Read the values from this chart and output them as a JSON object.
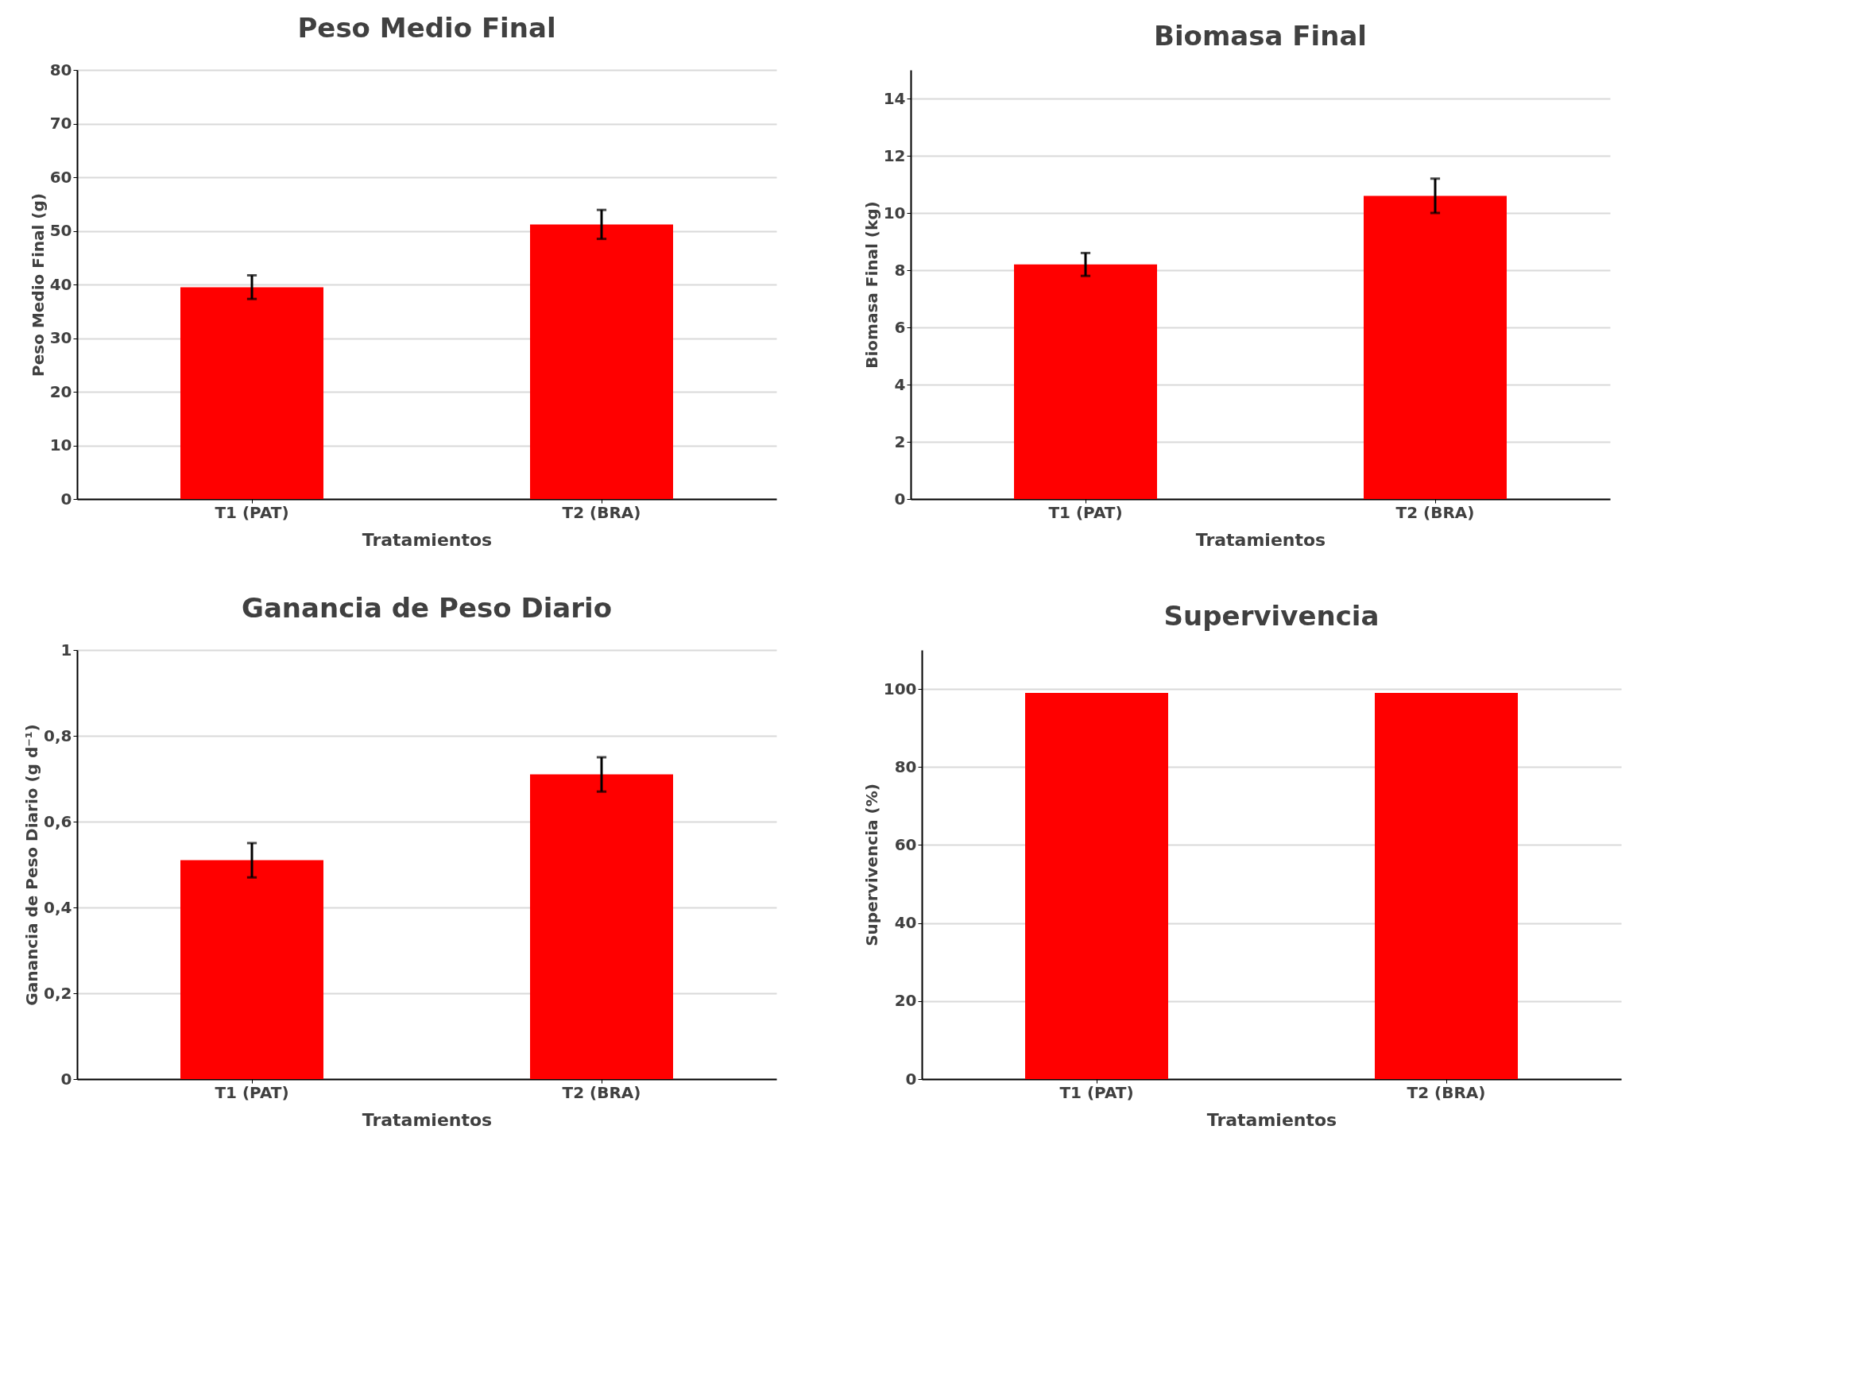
{
  "chart_data": [
    {
      "type": "bar",
      "title": "Peso Medio Final",
      "xlabel": "Tratamientos",
      "ylabel": "Peso Medio Final (g)",
      "categories": [
        "T1 (PAT)",
        "T2 (BRA)"
      ],
      "series": [
        {
          "color": "#ff0000",
          "values": [
            39.5,
            51.2
          ],
          "errors": [
            2.2,
            2.7
          ]
        }
      ],
      "ylim": [
        0,
        80
      ],
      "yticks": [
        0,
        10,
        20,
        30,
        40,
        50,
        60,
        70,
        80
      ],
      "grid": "y"
    },
    {
      "type": "bar",
      "title": "Biomasa Final",
      "xlabel": "Tratamientos",
      "ylabel": "Biomasa Final (kg)",
      "categories": [
        "T1 (PAT)",
        "T2 (BRA)"
      ],
      "series": [
        {
          "color": "#ff0000",
          "values": [
            8.2,
            10.6
          ],
          "errors": [
            0.4,
            0.6
          ]
        }
      ],
      "ylim": [
        0,
        15
      ],
      "yticks": [
        0,
        2,
        4,
        6,
        8,
        10,
        12,
        14
      ],
      "grid": "y"
    },
    {
      "type": "bar",
      "title": "Ganancia de Peso Diario",
      "xlabel": "Tratamientos",
      "ylabel": "Ganancia de Peso Diario (g d⁻¹)",
      "categories": [
        "T1 (PAT)",
        "T2 (BRA)"
      ],
      "series": [
        {
          "color": "#ff0000",
          "values": [
            0.51,
            0.71
          ],
          "errors": [
            0.04,
            0.04
          ]
        }
      ],
      "ylim": [
        0,
        1
      ],
      "yticks": [
        0,
        {
          "value": 0.2,
          "label": "0,2"
        },
        {
          "value": 0.4,
          "label": "0,4"
        },
        {
          "value": 0.6,
          "label": "0,6"
        },
        {
          "value": 0.8,
          "label": "0,8"
        },
        1
      ],
      "grid": "y"
    },
    {
      "type": "bar",
      "title": "Supervivencia",
      "xlabel": "Tratamientos",
      "ylabel": "Supervivencia (%)",
      "categories": [
        "T1 (PAT)",
        "T2 (BRA)"
      ],
      "series": [
        {
          "color": "#ff0000",
          "values": [
            99,
            99
          ]
        }
      ],
      "ylim": [
        0,
        110
      ],
      "yticks": [
        0,
        20,
        40,
        60,
        80,
        100
      ],
      "grid": "y"
    }
  ]
}
